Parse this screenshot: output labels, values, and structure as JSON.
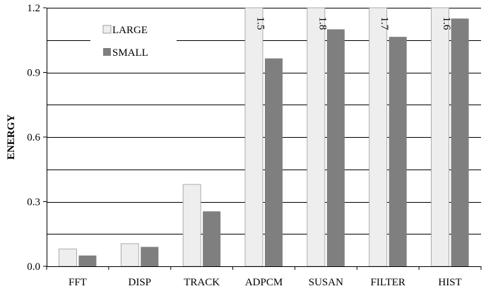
{
  "chart_data": {
    "type": "bar",
    "title": "",
    "xlabel": "",
    "ylabel": "ENERGY",
    "ylim": [
      0,
      1.2
    ],
    "yticks": [
      "0.0",
      "0.3",
      "0.6",
      "0.9",
      "1.2"
    ],
    "ytick_values": [
      0,
      0.3,
      0.6,
      0.9,
      1.2
    ],
    "grid": "horizontal gridlines every 0.15",
    "legend_position": "top-left",
    "categories": [
      "FFT",
      "DISP",
      "TRACK",
      "ADPCM",
      "SUSAN",
      "FILTER",
      "HIST"
    ],
    "series": [
      {
        "name": "LARGE",
        "color": "#eeeeee",
        "values": [
          0.08,
          0.105,
          0.38,
          1.5,
          1.8,
          1.7,
          1.6
        ],
        "value_labels": [
          "",
          "",
          "",
          "1.5",
          "1.8",
          "1.7",
          "1.6"
        ]
      },
      {
        "name": "SMALL",
        "color": "#7f7f7f",
        "values": [
          0.05,
          0.09,
          0.255,
          0.965,
          1.1,
          1.065,
          1.15
        ]
      }
    ]
  }
}
